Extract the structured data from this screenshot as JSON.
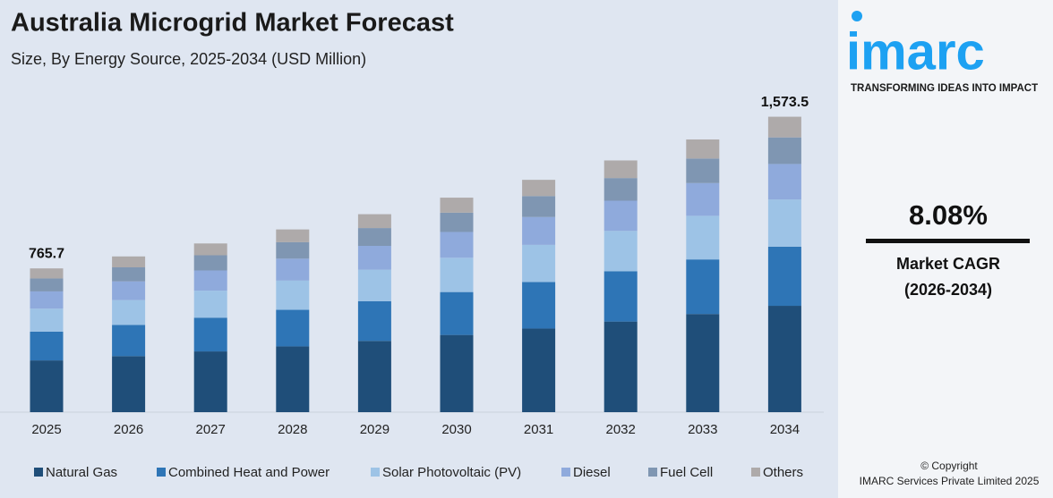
{
  "chart_data": {
    "type": "stacked_bar",
    "title": "Australia Microgrid Market Forecast",
    "subtitle": "Size, By Energy Source, 2025-2034 (USD Million)",
    "categories": [
      "2025",
      "2026",
      "2027",
      "2028",
      "2029",
      "2030",
      "2031",
      "2032",
      "2033",
      "2034"
    ],
    "series": [
      {
        "name": "Natural Gas",
        "color": "#1f4e79",
        "values": [
          275.7,
          298.6,
          323.5,
          350.4,
          379.6,
          411.3,
          445.5,
          482.7,
          522.9,
          566.5
        ]
      },
      {
        "name": "Combined Heat and Power",
        "color": "#2e75b6",
        "values": [
          153.1,
          165.9,
          179.7,
          194.7,
          210.9,
          228.5,
          247.5,
          268.1,
          290.5,
          314.7
        ]
      },
      {
        "name": "Solar Photovoltaic (PV)",
        "color": "#9dc3e6",
        "values": [
          122.5,
          132.7,
          143.8,
          155.7,
          168.7,
          182.8,
          198.0,
          214.5,
          232.4,
          251.8
        ]
      },
      {
        "name": "Diesel",
        "color": "#8faadc",
        "values": [
          91.9,
          99.5,
          107.8,
          116.8,
          126.5,
          137.1,
          148.5,
          160.9,
          174.3,
          188.8
        ]
      },
      {
        "name": "Fuel Cell",
        "color": "#7f96b2",
        "values": [
          68.9,
          74.7,
          80.9,
          87.6,
          94.9,
          102.8,
          111.4,
          120.7,
          130.7,
          141.6
        ]
      },
      {
        "name": "Others",
        "color": "#aeaaaa",
        "values": [
          53.6,
          58.1,
          62.9,
          68.1,
          73.8,
          80.0,
          86.6,
          93.8,
          101.7,
          110.1
        ]
      }
    ],
    "totals": [
      {
        "category": "2025",
        "value": 765.7,
        "label": "765.7"
      },
      {
        "category": "2034",
        "value": 1573.5,
        "label": "1,573.5"
      }
    ],
    "ylim": [
      0,
      1700
    ],
    "grid": false,
    "legend": "bottom"
  },
  "sidebar": {
    "logo": "imarc",
    "tagline": "TRANSFORMING IDEAS INTO IMPACT",
    "cagr": "8.08%",
    "cagr_label": "Market CAGR",
    "cagr_period": "(2026-2034)",
    "copyright": "© Copyright",
    "company": "IMARC Services Private Limited 2025"
  }
}
